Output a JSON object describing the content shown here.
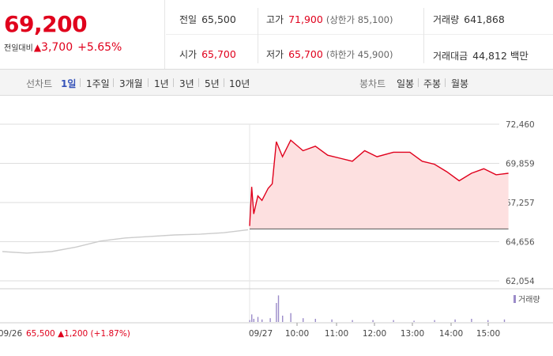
{
  "summary": {
    "price": "69,200",
    "change_label": "전일대비",
    "change_tri": "▲",
    "change_amount": "3,700",
    "change_pct": "+5.65%",
    "prev_close_label": "전일",
    "prev_close": "65,500",
    "high_label": "고가",
    "high": "71,900",
    "upper_limit": "(상한가 85,100)",
    "volume_label": "거래량",
    "volume": "641,868",
    "open_label": "시가",
    "open": "65,700",
    "low_label": "저가",
    "low": "65,700",
    "lower_limit": "(하한가 45,900)",
    "amount_label": "거래대금",
    "amount": "44,812",
    "amount_unit": "백만"
  },
  "tabs": {
    "line_label": "선차트",
    "line_periods": [
      "1일",
      "1주일",
      "3개월",
      "1년",
      "3년",
      "5년",
      "10년"
    ],
    "active_period": "1일",
    "candle_label": "봉차트",
    "candle_periods": [
      "일봉",
      "주봉",
      "월봉"
    ]
  },
  "colors": {
    "up": "#e0001c",
    "fill": "#fde0e0",
    "prev_line": "#cccccc",
    "volume": "#9b8bc9",
    "grid": "#dedede"
  },
  "chart_data": {
    "type": "line",
    "ylim": [
      62054,
      72460
    ],
    "y_ticks": [
      "72,460",
      "69,859",
      "67,257",
      "64,656",
      "62,054"
    ],
    "x_ticks": [
      "09/26",
      "09/27",
      "10:00",
      "11:00",
      "12:00",
      "13:00",
      "14:00",
      "15:00"
    ],
    "baseline": 65500,
    "prev_day": {
      "date": "09/26",
      "summary": "65,500 ▲1,200 (+1.87%)",
      "x": [
        0,
        0.1,
        0.2,
        0.3,
        0.4,
        0.5,
        0.6,
        0.7,
        0.8,
        0.9,
        1.0
      ],
      "values": [
        64000,
        63900,
        64000,
        64300,
        64700,
        64900,
        65000,
        65100,
        65150,
        65250,
        65450
      ]
    },
    "today": {
      "x": [
        9.0,
        9.05,
        9.1,
        9.2,
        9.3,
        9.45,
        9.55,
        9.65,
        9.8,
        10.0,
        10.3,
        10.6,
        10.9,
        11.2,
        11.5,
        11.8,
        12.1,
        12.5,
        12.9,
        13.2,
        13.5,
        13.8,
        14.1,
        14.4,
        14.7,
        15.0,
        15.3
      ],
      "values": [
        65700,
        68300,
        66500,
        67700,
        67400,
        68200,
        68500,
        71300,
        70300,
        71400,
        70700,
        71000,
        70400,
        70200,
        70000,
        70700,
        70300,
        70600,
        70600,
        70000,
        69800,
        69300,
        68700,
        69200,
        69500,
        69100,
        69200
      ]
    },
    "volume_label": "거래량",
    "volume": {
      "x": [
        9.0,
        9.05,
        9.1,
        9.2,
        9.3,
        9.5,
        9.65,
        9.7,
        9.8,
        10.0,
        10.3,
        10.6,
        11.0,
        11.5,
        12.0,
        12.5,
        13.0,
        13.5,
        14.0,
        14.4,
        14.8,
        15.2
      ],
      "values": [
        3,
        12,
        5,
        8,
        4,
        6,
        30,
        42,
        10,
        14,
        6,
        5,
        4,
        3,
        3,
        3,
        2,
        3,
        4,
        5,
        3,
        4
      ]
    }
  }
}
